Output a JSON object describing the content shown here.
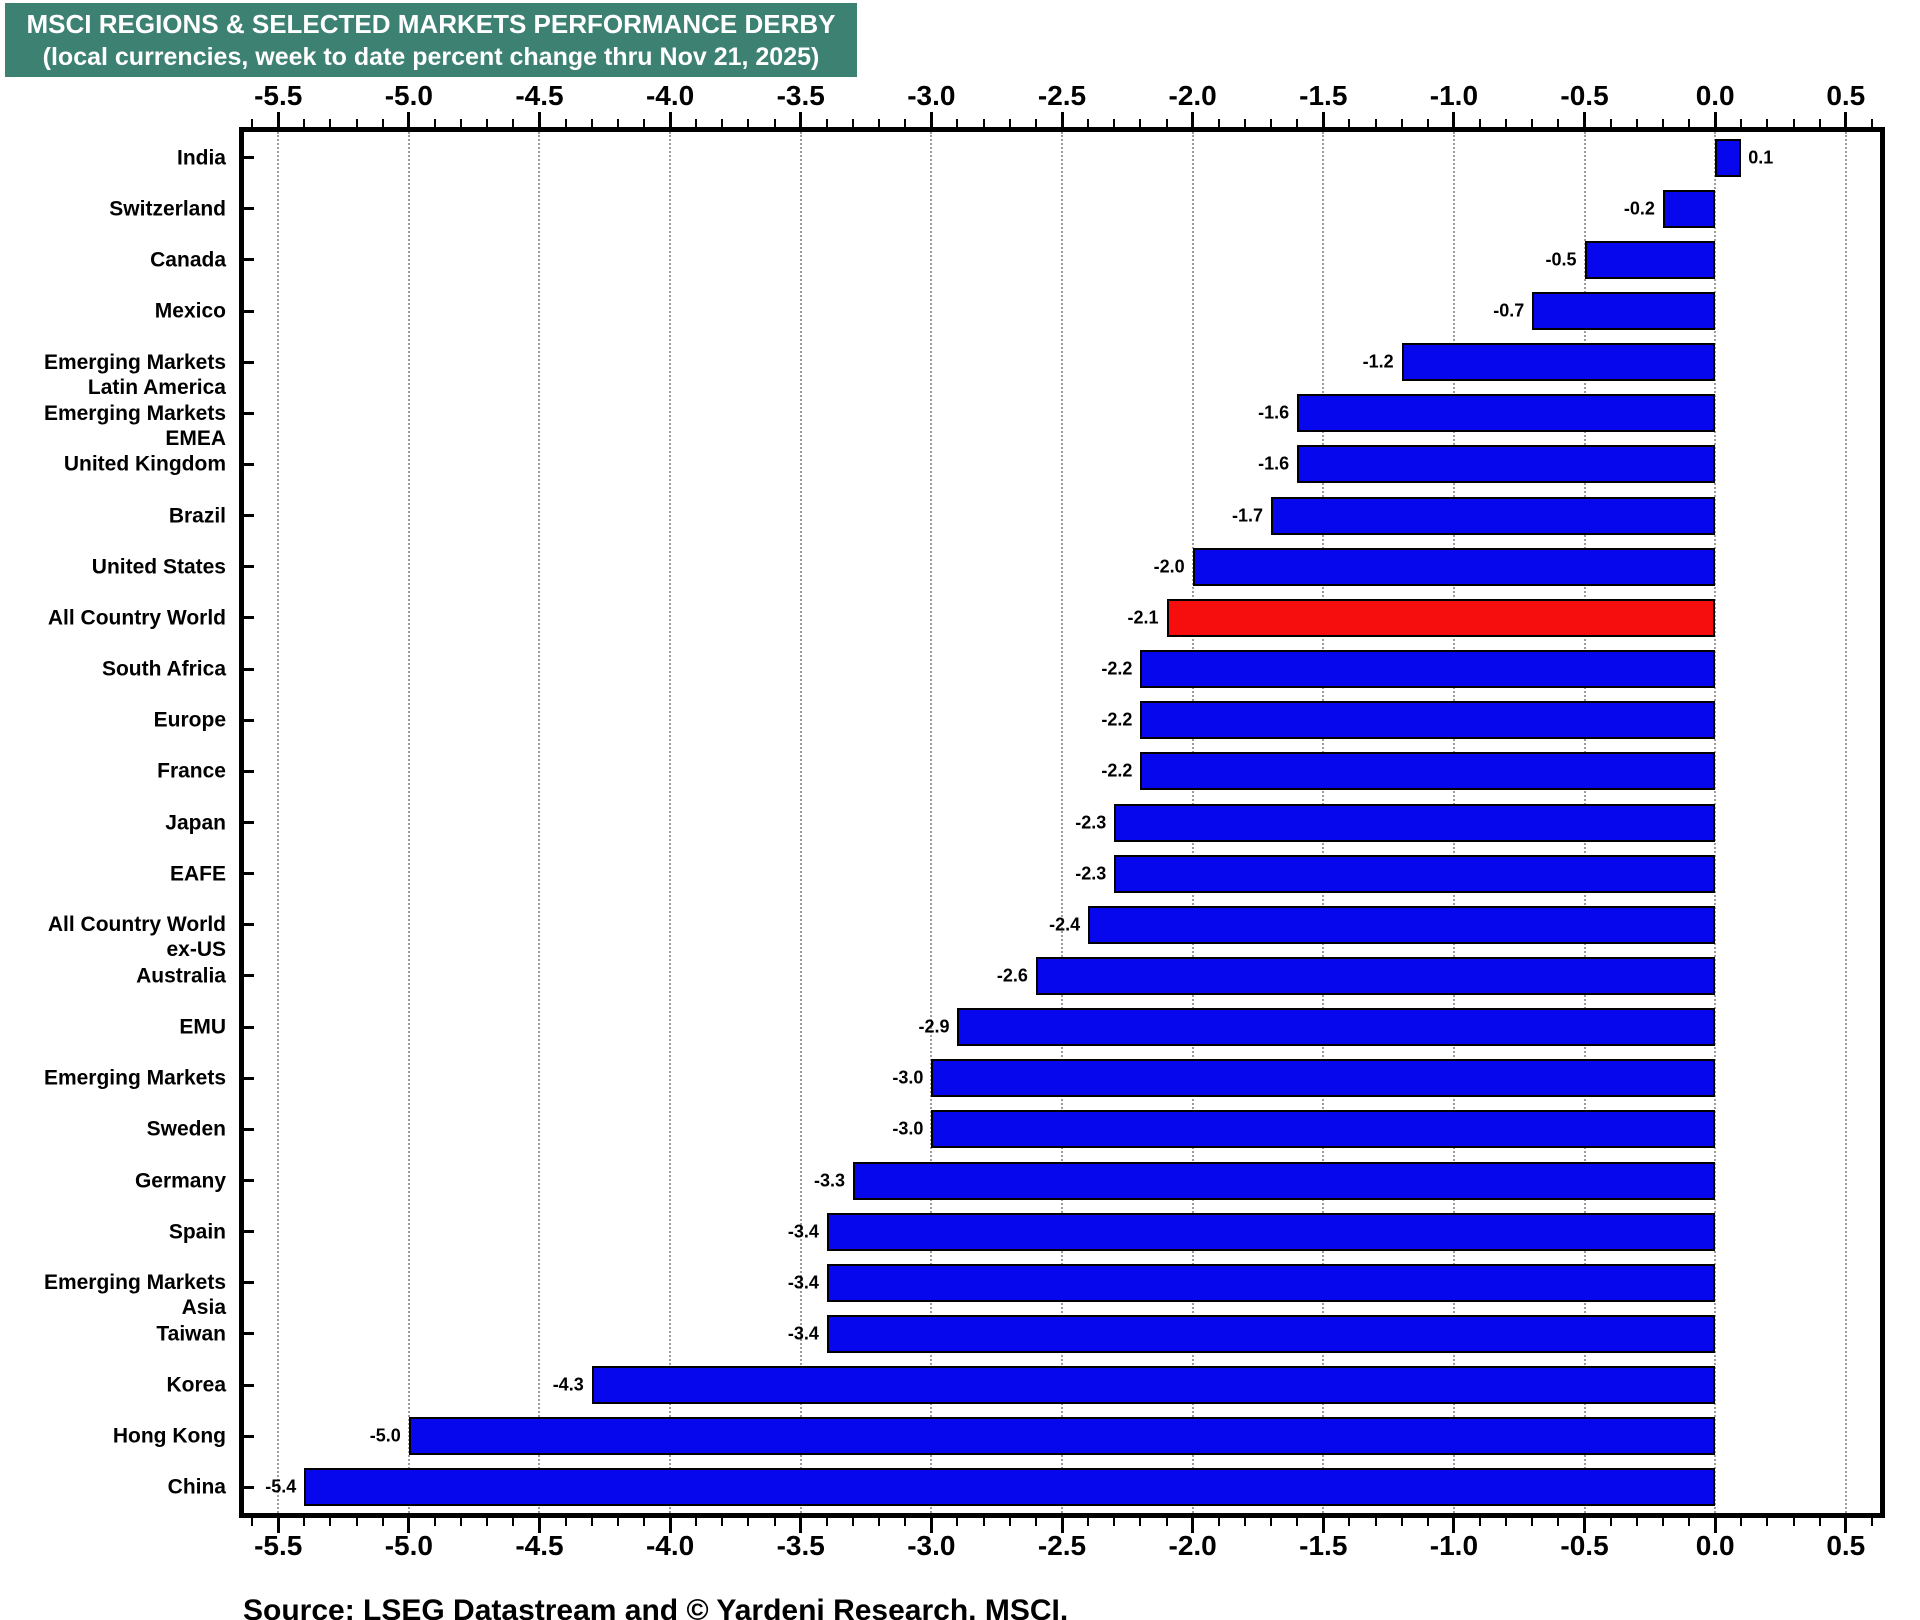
{
  "title": {
    "line1": "MSCI REGIONS & SELECTED MARKETS PERFORMANCE DERBY",
    "line2": "(local currencies, week to date percent change thru Nov 21, 2025)"
  },
  "source": "Source: LSEG Datastream and © Yardeni Research. MSCI.",
  "colors": {
    "header_bg": "#3D8173",
    "bar_blue": "#0707EE",
    "bar_red": "#F60D0D",
    "bar_border": "#000000",
    "grid": "#9C9C9C",
    "frame": "#000000"
  },
  "chart_data": {
    "type": "bar",
    "orientation": "horizontal",
    "title": "MSCI REGIONS & SELECTED MARKETS PERFORMANCE DERBY",
    "subtitle": "(local currencies, week to date percent change thru Nov 21, 2025)",
    "xlabel": "week to date percent change",
    "ylabel": "",
    "xlim": [
      -5.65,
      0.65
    ],
    "grid": true,
    "x_tick_labels": [
      "-5.5",
      "-5.0",
      "-4.5",
      "-4.0",
      "-3.5",
      "-3.0",
      "-2.5",
      "-2.0",
      "-1.5",
      "-1.0",
      "-0.5",
      "0.0",
      "0.5"
    ],
    "x_ticks": [
      -5.5,
      -5.0,
      -4.5,
      -4.0,
      -3.5,
      -3.0,
      -2.5,
      -2.0,
      -1.5,
      -1.0,
      -0.5,
      0.0,
      0.5
    ],
    "minor_tick_step": 0.1,
    "rows": [
      {
        "label": [
          "India"
        ],
        "value": 0.1,
        "highlight": false
      },
      {
        "label": [
          "Switzerland"
        ],
        "value": -0.2,
        "highlight": false
      },
      {
        "label": [
          "Canada"
        ],
        "value": -0.5,
        "highlight": false
      },
      {
        "label": [
          "Mexico"
        ],
        "value": -0.7,
        "highlight": false
      },
      {
        "label": [
          "Emerging Markets",
          "Latin America"
        ],
        "value": -1.2,
        "highlight": false
      },
      {
        "label": [
          "Emerging Markets",
          "EMEA"
        ],
        "value": -1.6,
        "highlight": false
      },
      {
        "label": [
          "United Kingdom"
        ],
        "value": -1.6,
        "highlight": false
      },
      {
        "label": [
          "Brazil"
        ],
        "value": -1.7,
        "highlight": false
      },
      {
        "label": [
          "United States"
        ],
        "value": -2.0,
        "highlight": false
      },
      {
        "label": [
          "All Country World"
        ],
        "value": -2.1,
        "highlight": true
      },
      {
        "label": [
          "South Africa"
        ],
        "value": -2.2,
        "highlight": false
      },
      {
        "label": [
          "Europe"
        ],
        "value": -2.2,
        "highlight": false
      },
      {
        "label": [
          "France"
        ],
        "value": -2.2,
        "highlight": false
      },
      {
        "label": [
          "Japan"
        ],
        "value": -2.3,
        "highlight": false
      },
      {
        "label": [
          "EAFE"
        ],
        "value": -2.3,
        "highlight": false
      },
      {
        "label": [
          "All Country World",
          "ex-US"
        ],
        "value": -2.4,
        "highlight": false
      },
      {
        "label": [
          "Australia"
        ],
        "value": -2.6,
        "highlight": false
      },
      {
        "label": [
          "EMU"
        ],
        "value": -2.9,
        "highlight": false
      },
      {
        "label": [
          "Emerging Markets"
        ],
        "value": -3.0,
        "highlight": false
      },
      {
        "label": [
          "Sweden"
        ],
        "value": -3.0,
        "highlight": false
      },
      {
        "label": [
          "Germany"
        ],
        "value": -3.3,
        "highlight": false
      },
      {
        "label": [
          "Spain"
        ],
        "value": -3.4,
        "highlight": false
      },
      {
        "label": [
          "Emerging Markets",
          "Asia"
        ],
        "value": -3.4,
        "highlight": false
      },
      {
        "label": [
          "Taiwan"
        ],
        "value": -3.4,
        "highlight": false
      },
      {
        "label": [
          "Korea"
        ],
        "value": -4.3,
        "highlight": false
      },
      {
        "label": [
          "Hong Kong"
        ],
        "value": -5.0,
        "highlight": false
      },
      {
        "label": [
          "China"
        ],
        "value": -5.4,
        "highlight": false
      }
    ]
  }
}
